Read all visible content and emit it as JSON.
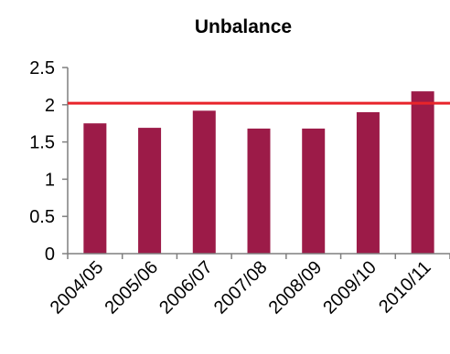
{
  "chart_data": {
    "type": "bar",
    "title": "Unbalance",
    "xlabel": "",
    "ylabel": "",
    "categories": [
      "2004/05",
      "2005/06",
      "2006/07",
      "2007/08",
      "2008/09",
      "2009/10",
      "2010/11"
    ],
    "values": [
      1.75,
      1.69,
      1.92,
      1.68,
      1.68,
      1.9,
      2.18
    ],
    "ylim": [
      0,
      2.5
    ],
    "yticks": [
      "0",
      "0.5",
      "1",
      "1.5",
      "2",
      "2.5"
    ],
    "reference_line": 2.02,
    "grid": false,
    "legend": "none",
    "colors": {
      "bar": "#9c1b48",
      "reference_line": "#e8242a",
      "axis": "#7f7f7f"
    }
  }
}
